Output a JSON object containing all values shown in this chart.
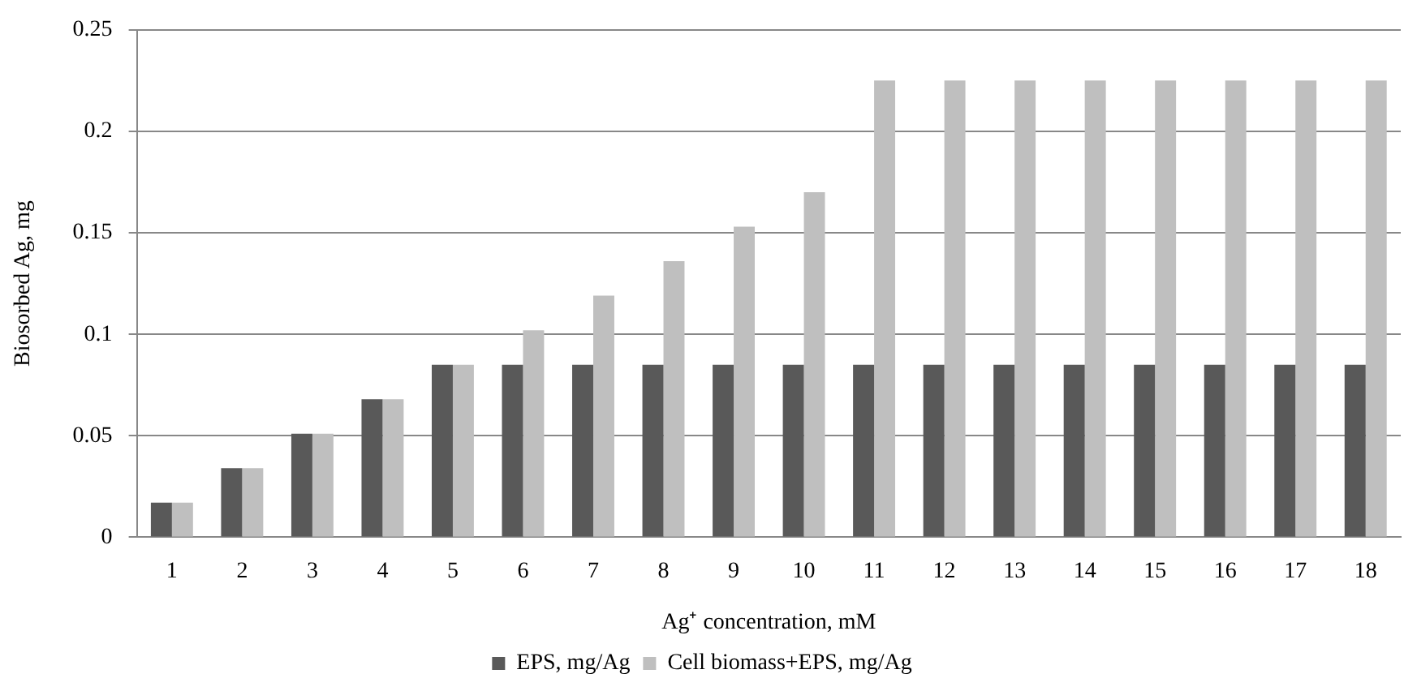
{
  "chart_data": {
    "type": "bar",
    "xlabel": "Ag⁺ concentration, mM",
    "ylabel": "Biosorbed Ag, mg",
    "categories": [
      "1",
      "2",
      "3",
      "4",
      "5",
      "6",
      "7",
      "8",
      "9",
      "10",
      "11",
      "12",
      "13",
      "14",
      "15",
      "16",
      "17",
      "18"
    ],
    "series": [
      {
        "name": "EPS, mg/Ag",
        "color": "#595959",
        "values": [
          0.017,
          0.034,
          0.051,
          0.068,
          0.085,
          0.085,
          0.085,
          0.085,
          0.085,
          0.085,
          0.085,
          0.085,
          0.085,
          0.085,
          0.085,
          0.085,
          0.085,
          0.085
        ]
      },
      {
        "name": "Cell biomass+EPS, mg/Ag",
        "color": "#bfbfbf",
        "values": [
          0.017,
          0.034,
          0.051,
          0.068,
          0.085,
          0.102,
          0.119,
          0.136,
          0.153,
          0.17,
          0.225,
          0.225,
          0.225,
          0.225,
          0.225,
          0.225,
          0.225,
          0.225
        ]
      }
    ],
    "ylim": [
      0,
      0.25
    ],
    "yticks": [
      0,
      0.05,
      0.1,
      0.15,
      0.2,
      0.25
    ],
    "grid": "y",
    "legend": "bottom"
  }
}
